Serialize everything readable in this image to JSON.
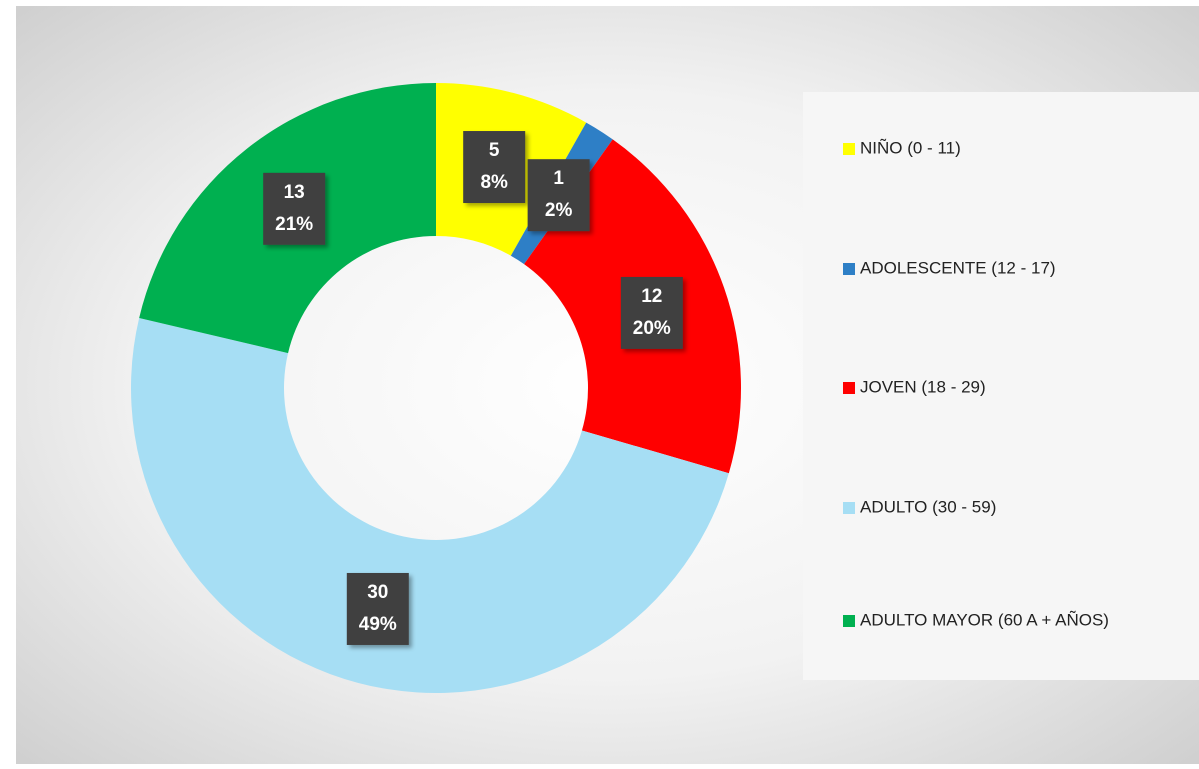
{
  "chart_data": {
    "type": "donut",
    "categories": [
      "NIÑO (0 - 11)",
      "ADOLESCENTE (12 - 17)",
      "JOVEN (18 - 29)",
      "ADULTO (30 - 59)",
      "ADULTO MAYOR (60 A + AÑOS)"
    ],
    "values": [
      5,
      1,
      12,
      30,
      13
    ],
    "percent_labels": [
      "8%",
      "2%",
      "20%",
      "49%",
      "21%"
    ],
    "colors": [
      "#ffff00",
      "#2e7fc6",
      "#ff0000",
      "#a6def4",
      "#00b050"
    ],
    "legend": "right"
  }
}
